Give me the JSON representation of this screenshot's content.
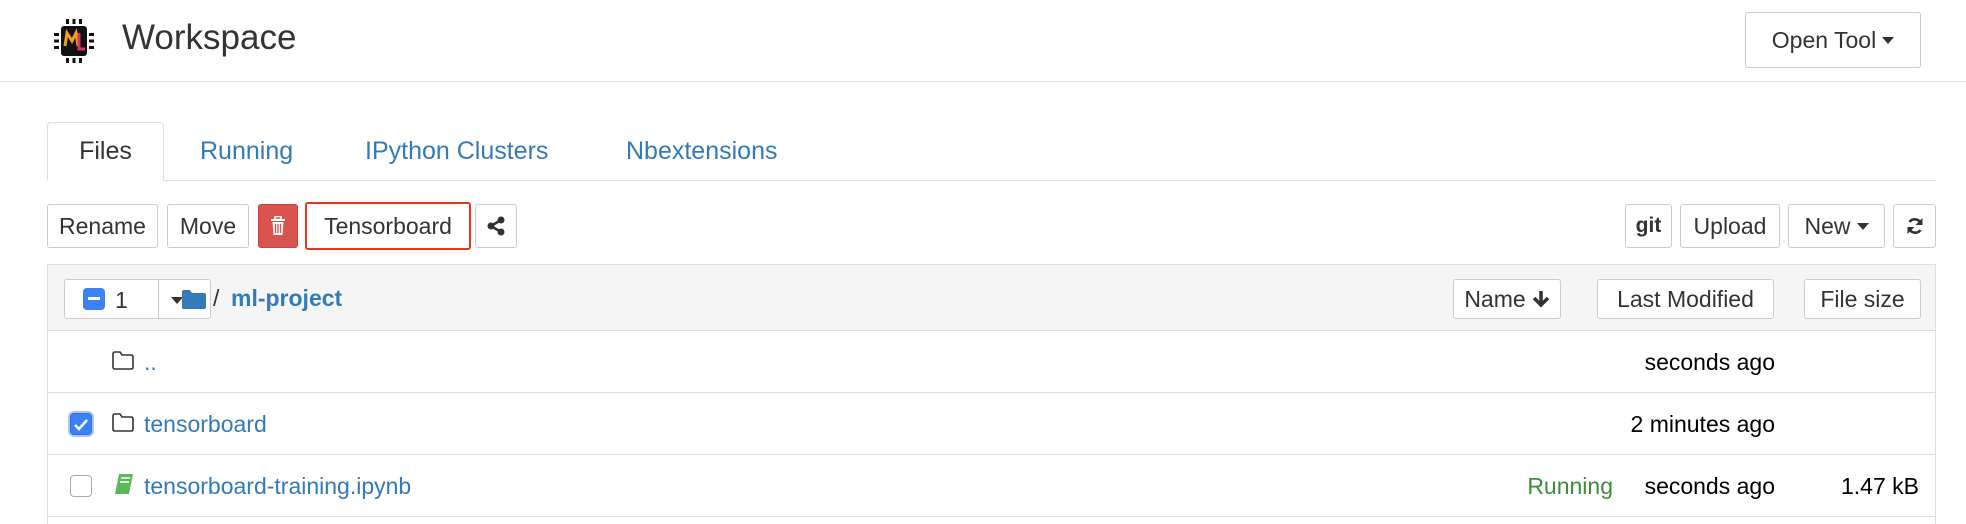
{
  "header": {
    "title": "Workspace",
    "open_tool": "Open Tool",
    "logo_text": "ML"
  },
  "tabs": [
    {
      "label": "Files",
      "active": true
    },
    {
      "label": "Running"
    },
    {
      "label": "IPython Clusters"
    },
    {
      "label": "Nbextensions"
    }
  ],
  "toolbar": {
    "rename": "Rename",
    "move": "Move",
    "delete_icon": "trash-icon",
    "tensorboard": "Tensorboard",
    "share_icon": "share-icon",
    "git": "git",
    "upload": "Upload",
    "new": "New",
    "refresh_icon": "refresh-icon"
  },
  "list_header": {
    "selected_count": "1",
    "separator": "/",
    "path": "ml-project",
    "sort_name": "Name",
    "sort_modified": "Last Modified",
    "sort_size": "File size"
  },
  "rows": [
    {
      "name": "..",
      "type": "folder",
      "checked": false,
      "status": "",
      "modified": "seconds ago",
      "size": ""
    },
    {
      "name": "tensorboard",
      "type": "folder",
      "checked": true,
      "status": "",
      "modified": "2 minutes ago",
      "size": ""
    },
    {
      "name": "tensorboard-training.ipynb",
      "type": "notebook",
      "checked": false,
      "status": "Running",
      "modified": "seconds ago",
      "size": "1.47 kB"
    }
  ],
  "colors": {
    "link": "#337ab7",
    "danger": "#d9534f",
    "highlight": "#e8341c",
    "running": "#3c8d3c",
    "checkbox": "#3b82f6"
  }
}
